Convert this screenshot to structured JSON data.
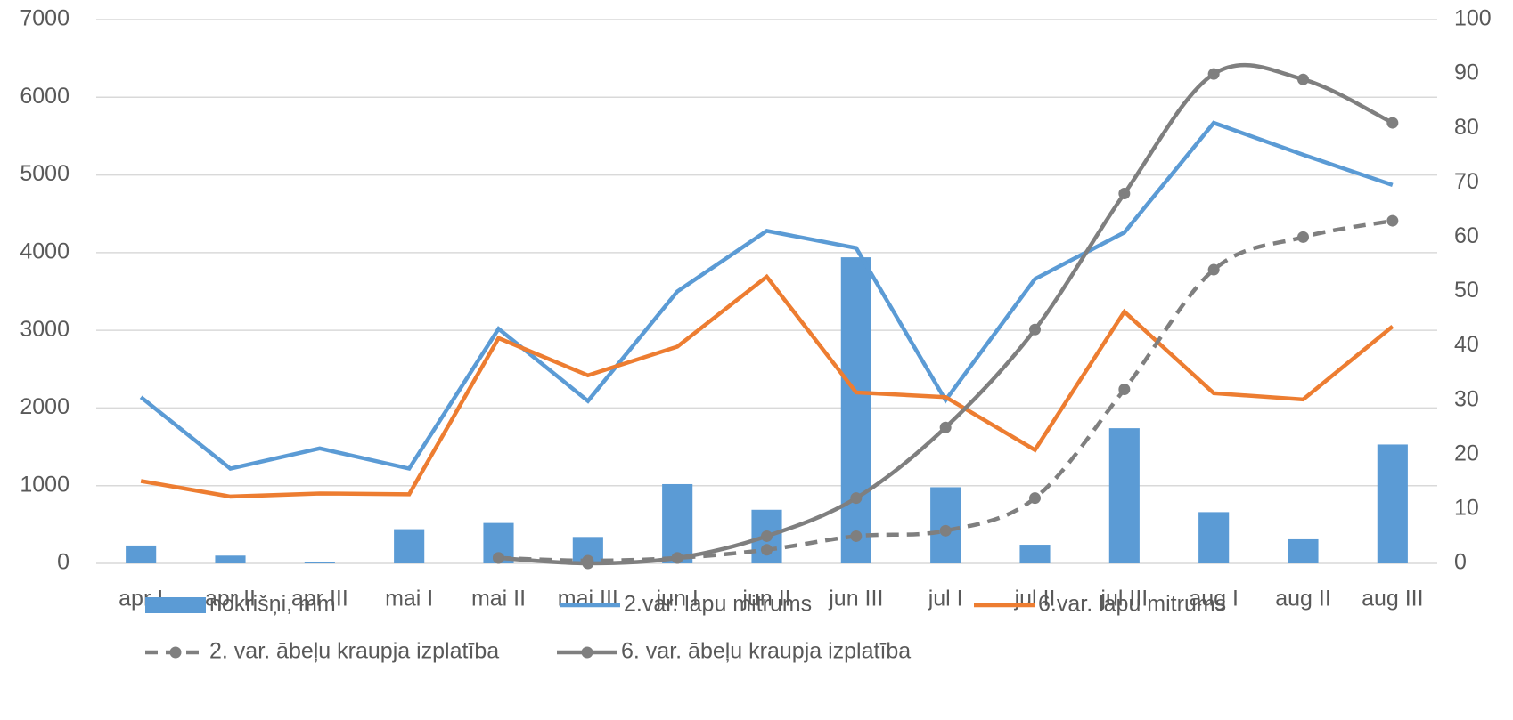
{
  "chart_data": {
    "type": "combo",
    "categories": [
      "apr I",
      "apr II",
      "apr III",
      "mai I",
      "mai II",
      "mai III",
      "jun I",
      "jun II",
      "jun III",
      "jul I",
      "jul II",
      "jul III",
      "aug I",
      "aug II",
      "aug III"
    ],
    "series": [
      {
        "name": "nokrišņi, mm",
        "type": "bar",
        "color": "#5b9bd5",
        "values": [
          230,
          100,
          15,
          440,
          520,
          340,
          1020,
          690,
          3940,
          980,
          240,
          1740,
          660,
          310,
          1530
        ]
      },
      {
        "name": "2.var. lapu mitrums",
        "type": "line",
        "color": "#5b9bd5",
        "values": [
          2140,
          1220,
          1480,
          1220,
          3020,
          2090,
          3500,
          4280,
          4060,
          2100,
          3660,
          4260,
          5670,
          5260,
          4870
        ]
      },
      {
        "name": "6.var. lapu mitrums",
        "type": "line",
        "color": "#ed7d31",
        "values": [
          1060,
          860,
          900,
          890,
          2900,
          2420,
          2790,
          3690,
          2200,
          2140,
          1460,
          3240,
          2190,
          2110,
          3050
        ]
      },
      {
        "name": "2. var. ābeļu kraupja izplatība",
        "type": "smooth",
        "dashed": true,
        "axis": "y2",
        "color": "#7f7f7f",
        "values": [
          null,
          null,
          null,
          null,
          1,
          0.5,
          1,
          2.5,
          5,
          6,
          12,
          32,
          54,
          60,
          63
        ]
      },
      {
        "name": "6. var. ābeļu kraupja izplatība",
        "type": "smooth",
        "dashed": false,
        "axis": "y2",
        "color": "#7f7f7f",
        "values": [
          null,
          null,
          null,
          null,
          1,
          0,
          1,
          5,
          12,
          25,
          43,
          68,
          90,
          89,
          81
        ]
      }
    ],
    "ylim": [
      0,
      7000
    ],
    "yticks": [
      0,
      1000,
      2000,
      3000,
      4000,
      5000,
      6000,
      7000
    ],
    "y2lim": [
      0,
      100
    ],
    "y2ticks": [
      0,
      10,
      20,
      30,
      40,
      50,
      60,
      70,
      80,
      90,
      100
    ],
    "grid": true,
    "legend": "bottom"
  }
}
